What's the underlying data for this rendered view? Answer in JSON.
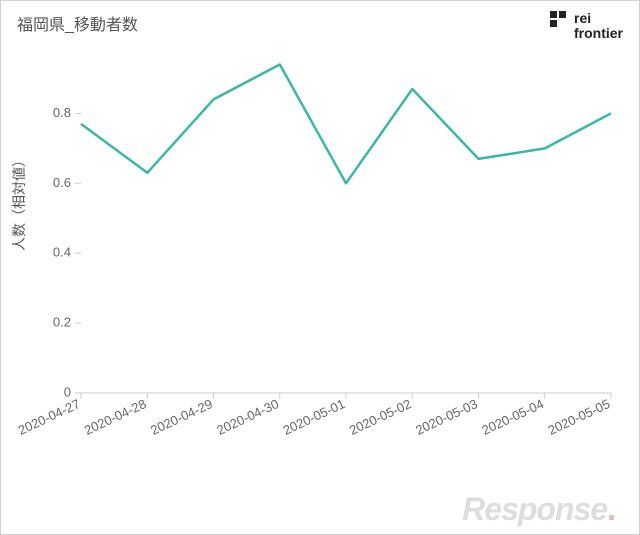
{
  "chart": {
    "type": "line",
    "title": "福岡県_移動者数",
    "y_axis_title": "人数（相対値）",
    "background_color": "#ffffff",
    "line_color": "#3db6a4",
    "axis_color": "#cccccc",
    "tick_label_color": "#666666",
    "title_color": "#555555",
    "line_width": 2.5,
    "ylim": [
      0,
      0.95
    ],
    "yticks": [
      0,
      0.2,
      0.4,
      0.6,
      0.8
    ],
    "categories": [
      "2020-04-27",
      "2020-04-28",
      "2020-04-29",
      "2020-04-30",
      "2020-05-01",
      "2020-05-02",
      "2020-05-03",
      "2020-05-04",
      "2020-05-05"
    ],
    "values": [
      0.77,
      0.63,
      0.84,
      0.94,
      0.6,
      0.87,
      0.67,
      0.7,
      0.8
    ],
    "title_fontsize": 16,
    "axis_fontsize": 13,
    "x_label_rotation_deg": -25
  },
  "brand": {
    "line1": "rei",
    "line2": "frontier",
    "mark_color": "#222222"
  },
  "watermark": {
    "text": "Response",
    "dot": "."
  }
}
